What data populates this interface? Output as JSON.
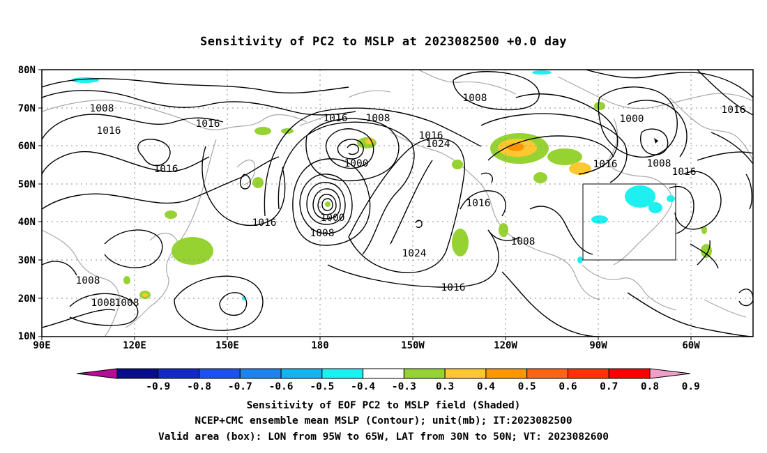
{
  "title": "Sensitivity of PC2 to MSLP at 2023082500 +0.0 day",
  "map": {
    "lat_labels": [
      "80N",
      "70N",
      "60N",
      "50N",
      "40N",
      "30N",
      "20N",
      "10N"
    ],
    "lon_labels": [
      "90E",
      "120E",
      "150E",
      "180",
      "150W",
      "120W",
      "90W",
      "60W"
    ],
    "box": {
      "lon_range": "95W to 65W",
      "lat_range": "30N to 50N"
    },
    "contour_labels": [
      "1008",
      "1016",
      "1016",
      "1016",
      "1016",
      "1008",
      "1016",
      "1016",
      "1008",
      "1000",
      "1016",
      "1024",
      "1000",
      "1008",
      "1024",
      "1016",
      "1016",
      "1008",
      "1016",
      "1008",
      "1000",
      "1008",
      "1016",
      "1016",
      "1008",
      "1008"
    ]
  },
  "colorbar": {
    "labels": [
      "-0.9",
      "-0.8",
      "-0.7",
      "-0.6",
      "-0.5",
      "-0.4",
      "-0.3",
      "0.3",
      "0.4",
      "0.5",
      "0.6",
      "0.7",
      "0.8",
      "0.9"
    ],
    "colors": [
      "#b40c96",
      "#0a0a8c",
      "#1428c8",
      "#1e50f0",
      "#1e82f0",
      "#14b4f0",
      "#1ef0f0",
      "#ffffff",
      "#96d232",
      "#ffc832",
      "#ff9600",
      "#ff6414",
      "#ff3200",
      "#ff0000",
      "#f0a0c8"
    ]
  },
  "captions": [
    "Sensitivity of EOF PC2 to MSLP field (Shaded)",
    "NCEP+CMC ensemble mean MSLP (Contour); unit(mb); IT:2023082500",
    "Valid area (box): LON from 95W to 65W, LAT from 30N to 50N; VT: 2023082600"
  ]
}
